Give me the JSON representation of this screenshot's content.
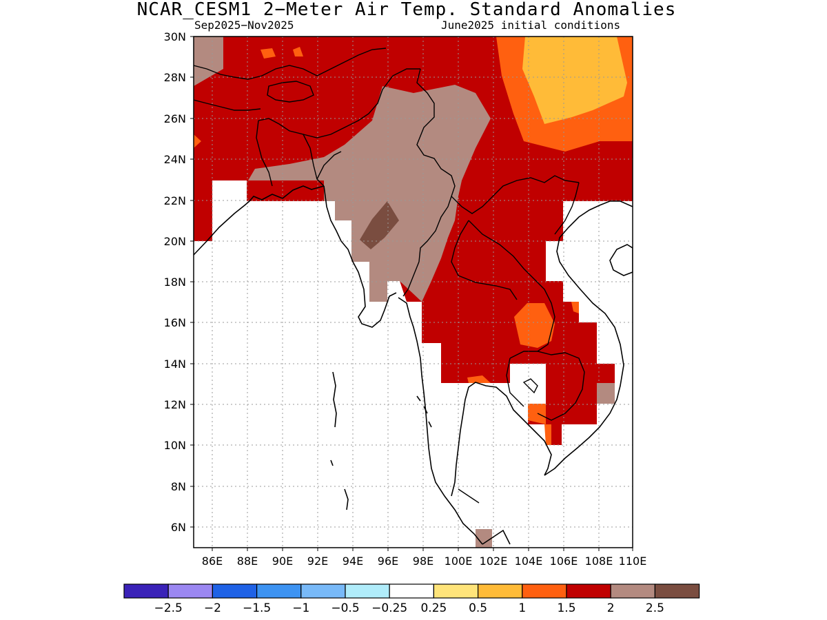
{
  "header": {
    "title": "NCAR_CESM1 2−Meter Air Temp. Standard Anomalies",
    "season": "Sep2025−Nov2025",
    "init": "June2025 initial conditions"
  },
  "map": {
    "lon_range": [
      85,
      110
    ],
    "lat_range": [
      5,
      30
    ],
    "lat_ticks": [
      "6N",
      "8N",
      "10N",
      "12N",
      "14N",
      "16N",
      "18N",
      "20N",
      "22N",
      "24N",
      "26N",
      "28N",
      "30N"
    ],
    "lon_ticks": [
      "86E",
      "88E",
      "90E",
      "92E",
      "94E",
      "96E",
      "98E",
      "100E",
      "102E",
      "104E",
      "106E",
      "108E",
      "110E"
    ],
    "grid": "dotted"
  },
  "colorbar": {
    "colors": [
      "#3a22b8",
      "#9b87f2",
      "#1f62e6",
      "#3d93f2",
      "#78b9f8",
      "#b0ecfa",
      "#ffffff",
      "#ffe47a",
      "#ffbb38",
      "#ff6010",
      "#c00000",
      "#b38a80",
      "#7a4d40"
    ],
    "labels": [
      "−2.5",
      "−2",
      "−1.5",
      "−1",
      "−0.5",
      "−0.25",
      "0.25",
      "0.5",
      "1",
      "1.5",
      "2",
      "2.5"
    ]
  },
  "legend_colors": {
    "c2": "#c00000",
    "c25": "#b38a80",
    "c3": "#7a4d40",
    "c15": "#ff6010",
    "c1": "#ffbb38"
  }
}
